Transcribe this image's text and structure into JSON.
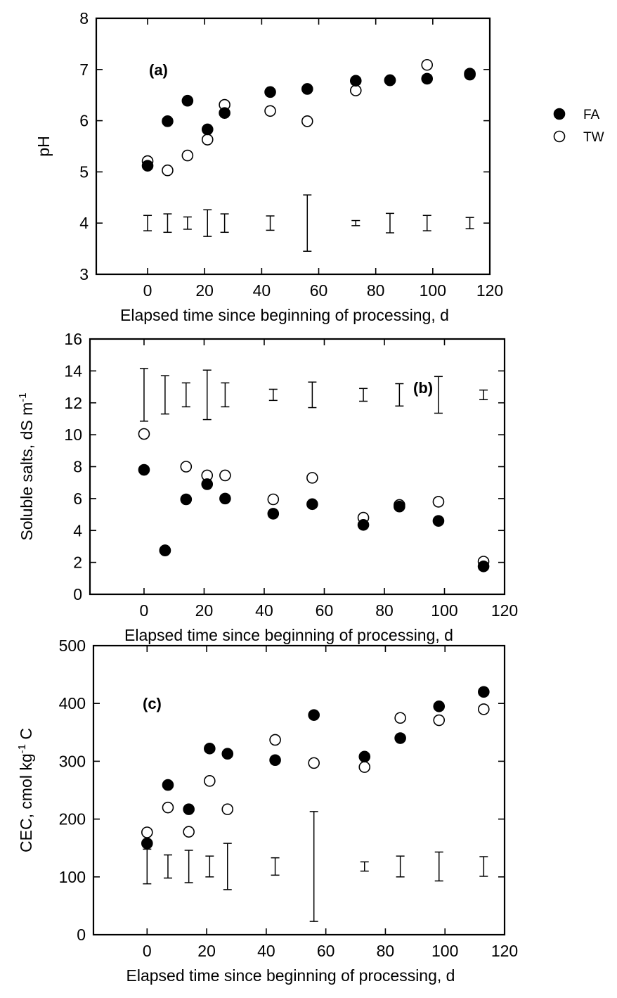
{
  "legend": [
    {
      "label": "FA",
      "marker": "filled-circle"
    },
    {
      "label": "TW",
      "marker": "open-circle"
    }
  ],
  "colors": {
    "ink": "#000000",
    "background": "#ffffff"
  },
  "chart_data": [
    {
      "type": "scatter",
      "panel_label": "(a)",
      "xlabel": "Elapsed time since beginning of processing, d",
      "ylabel": "pH",
      "xlim": [
        -18,
        120
      ],
      "ylim": [
        3,
        8
      ],
      "xticks": [
        0,
        20,
        40,
        60,
        80,
        100,
        120
      ],
      "yticks": [
        3,
        4,
        5,
        6,
        7,
        8
      ],
      "grid": false,
      "legend_position": "right of panel",
      "series": [
        {
          "name": "FA",
          "x": [
            0,
            7,
            14,
            21,
            27,
            43,
            56,
            73,
            85,
            98,
            113
          ],
          "y": [
            5.12,
            5.99,
            6.39,
            5.83,
            6.15,
            6.56,
            6.62,
            6.78,
            6.79,
            6.82,
            6.9
          ]
        },
        {
          "name": "TW",
          "x": [
            0,
            7,
            14,
            21,
            27,
            43,
            56,
            73,
            85,
            98,
            113
          ],
          "y": [
            5.21,
            5.03,
            5.32,
            5.63,
            6.31,
            6.19,
            5.99,
            6.59,
            6.79,
            7.09,
            6.92
          ]
        }
      ],
      "error_bars": {
        "center": 4.0,
        "x": [
          0,
          7,
          14,
          21,
          27,
          43,
          56,
          73,
          85,
          98,
          113
        ],
        "half_width": [
          0.15,
          0.18,
          0.12,
          0.26,
          0.18,
          0.14,
          0.55,
          0.05,
          0.19,
          0.15,
          0.11
        ]
      }
    },
    {
      "type": "scatter",
      "panel_label": "(b)",
      "xlabel": "Elapsed time since beginning of processing, d",
      "ylabel": "Soluble salts, dS m",
      "ylabel_superscript": "-1",
      "xlim": [
        -18,
        120
      ],
      "ylim": [
        0,
        16
      ],
      "xticks": [
        0,
        20,
        40,
        60,
        80,
        100,
        120
      ],
      "yticks": [
        0,
        2,
        4,
        6,
        8,
        10,
        12,
        14,
        16
      ],
      "grid": false,
      "series": [
        {
          "name": "FA",
          "x": [
            0,
            7,
            14,
            21,
            27,
            43,
            56,
            73,
            85,
            98,
            113
          ],
          "y": [
            7.8,
            2.75,
            5.95,
            6.9,
            6.0,
            5.05,
            5.65,
            4.35,
            5.5,
            4.6,
            1.75
          ]
        },
        {
          "name": "TW",
          "x": [
            0,
            7,
            14,
            21,
            27,
            43,
            56,
            73,
            85,
            98,
            113
          ],
          "y": [
            10.05,
            2.75,
            8.0,
            7.45,
            7.45,
            5.95,
            7.3,
            4.8,
            5.6,
            5.8,
            2.05
          ]
        }
      ],
      "error_bars": {
        "center": 12.5,
        "x": [
          0,
          7,
          14,
          21,
          27,
          43,
          56,
          73,
          85,
          98,
          113
        ],
        "half_width": [
          1.65,
          1.2,
          0.75,
          1.55,
          0.75,
          0.35,
          0.8,
          0.4,
          0.7,
          1.15,
          0.3
        ]
      }
    },
    {
      "type": "scatter",
      "panel_label": "(c)",
      "xlabel": "Elapsed time since beginning of processing, d",
      "ylabel": "CEC, cmol kg",
      "ylabel_superscript": "-1",
      "ylabel_suffix": " C",
      "xlim": [
        -18,
        120
      ],
      "ylim": [
        0,
        500
      ],
      "xticks": [
        0,
        20,
        40,
        60,
        80,
        100,
        120
      ],
      "yticks": [
        0,
        100,
        200,
        300,
        400,
        500
      ],
      "grid": false,
      "series": [
        {
          "name": "FA",
          "x": [
            0,
            7,
            14,
            21,
            27,
            43,
            56,
            73,
            85,
            98,
            113
          ],
          "y": [
            158,
            259,
            217,
            322,
            313,
            302,
            380,
            308,
            340,
            395,
            420
          ]
        },
        {
          "name": "TW",
          "x": [
            0,
            7,
            14,
            21,
            27,
            43,
            56,
            73,
            85,
            98,
            113
          ],
          "y": [
            177,
            220,
            178,
            266,
            217,
            337,
            297,
            290,
            375,
            371,
            390
          ]
        }
      ],
      "error_bars": {
        "center": 118,
        "x": [
          0,
          7,
          14,
          21,
          27,
          43,
          56,
          73,
          85,
          98,
          113
        ],
        "half_width": [
          30,
          20,
          28,
          18,
          40,
          15,
          95,
          8,
          18,
          25,
          17
        ]
      }
    }
  ]
}
